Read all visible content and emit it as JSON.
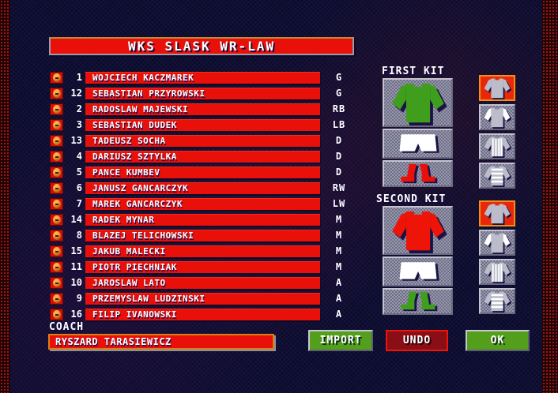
{
  "title": "WKS SLASK WR-LAW",
  "colors": {
    "accent_red": "#e81008",
    "background_navy": "#0d0b28",
    "panel_gray": "#84849a",
    "button_green": "#4a9a10",
    "undo_dark_red": "#7e0a14",
    "selected_orange": "#f09018",
    "thumb_selected_red": "#e82808"
  },
  "roster": {
    "players": [
      {
        "number": "1",
        "name": "WOJCIECH KACZMAREK",
        "position": "G"
      },
      {
        "number": "12",
        "name": "SEBASTIAN PRZYROWSKI",
        "position": "G"
      },
      {
        "number": "2",
        "name": "RADOSLAW MAJEWSKI",
        "position": "RB"
      },
      {
        "number": "3",
        "name": "SEBASTIAN DUDEK",
        "position": "LB"
      },
      {
        "number": "13",
        "name": "TADEUSZ SOCHA",
        "position": "D"
      },
      {
        "number": "4",
        "name": "DARIUSZ SZTYLKA",
        "position": "D"
      },
      {
        "number": "5",
        "name": "PANCE KUMBEV",
        "position": "D"
      },
      {
        "number": "6",
        "name": "JANUSZ GANCARCZYK",
        "position": "RW"
      },
      {
        "number": "7",
        "name": "MAREK GANCARCZYK",
        "position": "LW"
      },
      {
        "number": "14",
        "name": "RADEK MYNAR",
        "position": "M"
      },
      {
        "number": "8",
        "name": "BLAZEJ TELICHOWSKI",
        "position": "M"
      },
      {
        "number": "15",
        "name": "JAKUB MALECKI",
        "position": "M"
      },
      {
        "number": "11",
        "name": "PIOTR PIECHNIAK",
        "position": "M"
      },
      {
        "number": "10",
        "name": "JAROSLAW LATO",
        "position": "A"
      },
      {
        "number": "9",
        "name": "PRZEMYSLAW LUDZINSKI",
        "position": "A"
      },
      {
        "number": "16",
        "name": "FILIP IVANOWSKI",
        "position": "A"
      }
    ]
  },
  "kits": {
    "first": {
      "label": "FIRST KIT",
      "shirt_color": "#3f9e1c",
      "shorts_color": "#ffffff",
      "socks_color": "#e81008",
      "selected_style": "plain"
    },
    "second": {
      "label": "SECOND KIT",
      "shirt_color": "#ee1407",
      "shorts_color": "#ffffff",
      "socks_color": "#3f9e1c",
      "selected_style": "plain"
    },
    "styles": [
      "plain",
      "white-sleeves",
      "vertical-stripes",
      "hoops"
    ]
  },
  "coach": {
    "label": "COACH",
    "name": "RYSZARD TARASIEWICZ"
  },
  "buttons": {
    "import": "IMPORT",
    "undo": "UNDO",
    "ok": "OK"
  }
}
